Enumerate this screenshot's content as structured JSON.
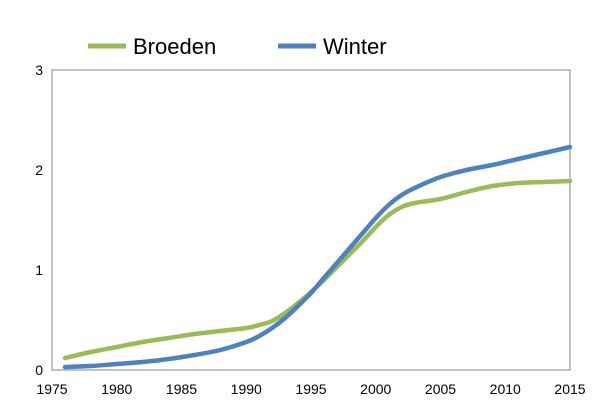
{
  "chart_data": {
    "type": "line",
    "title": "",
    "xlabel": "",
    "ylabel": "",
    "xlim": [
      1975,
      2015
    ],
    "ylim": [
      0,
      3
    ],
    "x_ticks": [
      "1975",
      "1980",
      "1985",
      "1990",
      "1995",
      "2000",
      "2005",
      "2010",
      "2015"
    ],
    "y_ticks": [
      "0",
      "1",
      "2",
      "3"
    ],
    "grid": false,
    "legend_position": "top",
    "series": [
      {
        "name": "Broeden",
        "color": "#9bbb59",
        "x": [
          1976,
          1978,
          1980,
          1982,
          1984,
          1986,
          1988,
          1990,
          1991,
          1992,
          1993,
          1994,
          1995,
          1996,
          1997,
          1998,
          1999,
          2000,
          2001,
          2002,
          2003,
          2005,
          2007,
          2009,
          2011,
          2013,
          2015
        ],
        "y": [
          0.12,
          0.18,
          0.23,
          0.28,
          0.32,
          0.36,
          0.39,
          0.42,
          0.45,
          0.49,
          0.57,
          0.67,
          0.78,
          0.9,
          1.03,
          1.16,
          1.29,
          1.43,
          1.55,
          1.63,
          1.67,
          1.71,
          1.78,
          1.84,
          1.87,
          1.88,
          1.89
        ]
      },
      {
        "name": "Winter",
        "color": "#4f81bd",
        "x": [
          1976,
          1978,
          1980,
          1982,
          1984,
          1986,
          1988,
          1990,
          1991,
          1992,
          1993,
          1994,
          1995,
          1996,
          1997,
          1998,
          1999,
          2000,
          2001,
          2002,
          2003,
          2005,
          2007,
          2009,
          2011,
          2013,
          2015
        ],
        "y": [
          0.03,
          0.04,
          0.06,
          0.08,
          0.11,
          0.15,
          0.2,
          0.28,
          0.34,
          0.42,
          0.52,
          0.64,
          0.77,
          0.92,
          1.07,
          1.22,
          1.37,
          1.52,
          1.65,
          1.75,
          1.82,
          1.93,
          2.0,
          2.05,
          2.11,
          2.17,
          2.23
        ]
      }
    ]
  }
}
